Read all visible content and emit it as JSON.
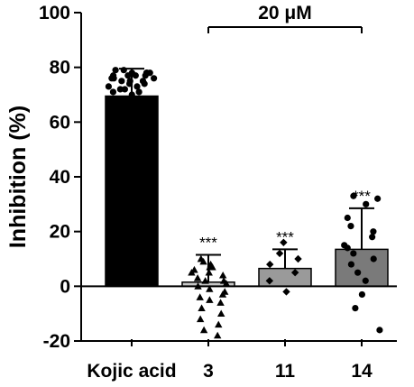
{
  "chart_data": {
    "type": "bar",
    "ylabel": "Inhibition  (%)",
    "ylim": [
      -20,
      100
    ],
    "yticks": [
      -20,
      0,
      20,
      40,
      60,
      80,
      100
    ],
    "categories": [
      "Kojic acid",
      "3",
      "11",
      "14"
    ],
    "values": [
      69.5,
      1.5,
      6.5,
      13.5
    ],
    "error": [
      10.0,
      10.0,
      7.0,
      15.0
    ],
    "bar_colors": [
      "#000000",
      "#c8c8c8",
      "#9a9a9a",
      "#7a7a7a"
    ],
    "significance": [
      "",
      "***",
      "***",
      "***"
    ],
    "points": [
      [
        75,
        76,
        77,
        78,
        79,
        78,
        77,
        76,
        75,
        74,
        73,
        72,
        71,
        70,
        71,
        72,
        73,
        74,
        75,
        76,
        77,
        78,
        79,
        78,
        77
      ],
      [
        8,
        9,
        10,
        7,
        6,
        5,
        4,
        3,
        2,
        1,
        0,
        -1,
        -2,
        -3,
        -4,
        -5,
        -6,
        -8,
        -10,
        -12,
        -14,
        -16,
        -18,
        2,
        5,
        7
      ],
      [
        16,
        12,
        10,
        8,
        5,
        2,
        -2
      ],
      [
        33,
        32,
        30,
        25,
        22,
        20,
        18,
        15,
        14,
        12,
        10,
        8,
        5,
        2,
        -3,
        -8,
        -16
      ]
    ],
    "point_markers": [
      "circle",
      "triangle",
      "diamond",
      "circle"
    ],
    "bracket": {
      "label": "20 μM",
      "from_category": 1,
      "to_category": 3
    }
  }
}
